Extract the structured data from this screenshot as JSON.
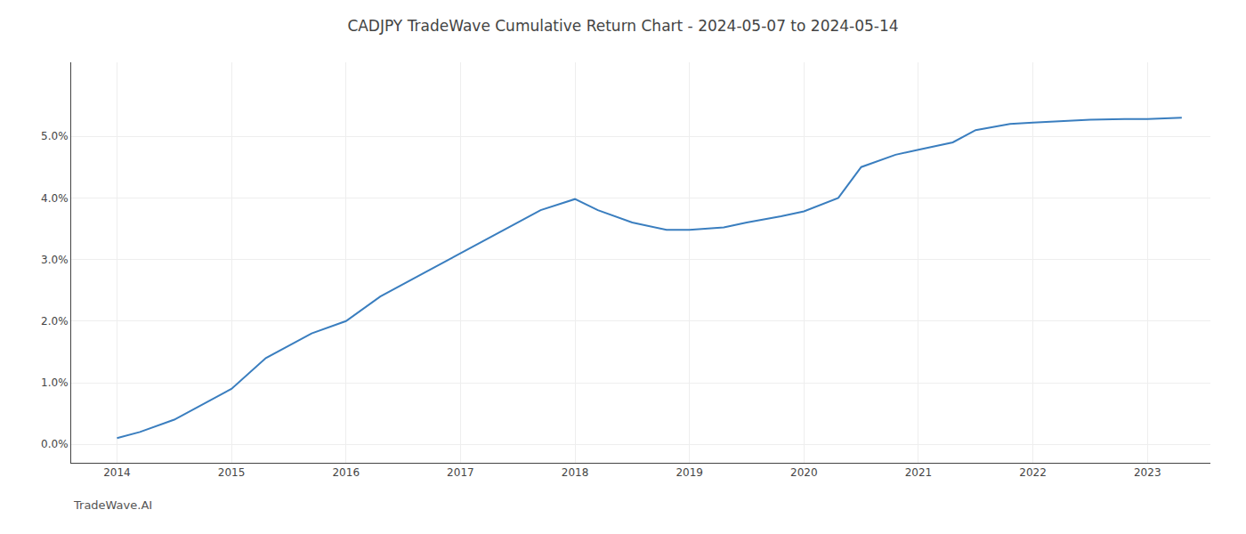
{
  "chart_data": {
    "type": "line",
    "title": "CADJPY TradeWave Cumulative Return Chart - 2024-05-07 to 2024-05-14",
    "annotations": [
      {
        "text": "TradeWave.AI"
      }
    ],
    "x": [
      2014.0,
      2014.2,
      2014.5,
      2015.0,
      2015.3,
      2015.7,
      2016.0,
      2016.3,
      2016.7,
      2017.0,
      2017.3,
      2017.7,
      2018.0,
      2018.2,
      2018.5,
      2018.8,
      2019.0,
      2019.3,
      2019.5,
      2019.8,
      2020.0,
      2020.3,
      2020.5,
      2020.8,
      2021.0,
      2021.3,
      2021.5,
      2021.8,
      2022.0,
      2022.3,
      2022.5,
      2022.8,
      2023.0,
      2023.3
    ],
    "values": [
      0.001,
      0.002,
      0.004,
      0.009,
      0.014,
      0.018,
      0.02,
      0.024,
      0.028,
      0.031,
      0.034,
      0.038,
      0.0398,
      0.038,
      0.036,
      0.0348,
      0.0348,
      0.0352,
      0.036,
      0.037,
      0.0378,
      0.04,
      0.045,
      0.047,
      0.0478,
      0.049,
      0.051,
      0.052,
      0.0522,
      0.0525,
      0.0527,
      0.0528,
      0.0528,
      0.053
    ],
    "color": "#3a7ebf",
    "xlim": [
      2013.6,
      2023.55
    ],
    "xticks": [
      2014,
      2015,
      2016,
      2017,
      2018,
      2019,
      2020,
      2021,
      2022,
      2023
    ],
    "ylim": [
      -0.003,
      0.062
    ],
    "yticks": [
      {
        "value": 0.0,
        "label": "0.0%"
      },
      {
        "value": 0.01,
        "label": "1.0%"
      },
      {
        "value": 0.02,
        "label": "2.0%"
      },
      {
        "value": 0.03,
        "label": "3.0%"
      },
      {
        "value": 0.04,
        "label": "4.0%"
      },
      {
        "value": 0.05,
        "label": "5.0%"
      }
    ],
    "grid": true
  }
}
